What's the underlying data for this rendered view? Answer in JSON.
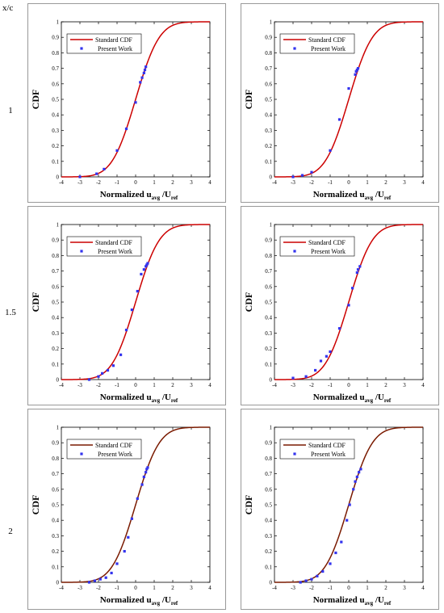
{
  "header_label": "x/c",
  "row_labels": [
    "1",
    "1.5",
    "2"
  ],
  "colors": {
    "cdf_row1_2": "#cc0000",
    "cdf_row3": "#7a1a00",
    "points": "#3333ee"
  },
  "axes": {
    "xlabel_main": "Normalized  u",
    "xlabel_sub1": "avg",
    "xlabel_mid": " /U",
    "xlabel_sub2": "ref",
    "ylabel": "CDF",
    "xlim": [
      -4,
      4
    ],
    "ylim": [
      0,
      1
    ],
    "xticks": [
      "-4",
      "-3",
      "-2",
      "-1",
      "0",
      "1",
      "2",
      "3",
      "4"
    ],
    "yticks": [
      "0",
      "0.1",
      "0.2",
      "0.3",
      "0.4",
      "0.5",
      "0.6",
      "0.7",
      "0.8",
      "0.9",
      "1"
    ]
  },
  "legend": {
    "line": "Standard CDF",
    "points": "Present Work"
  },
  "chart_data": [
    {
      "type": "line",
      "row": "1",
      "xlabel": "Normalized u_avg /U_ref",
      "ylabel": "CDF",
      "xlim": [
        -4,
        4
      ],
      "ylim": [
        0,
        1
      ],
      "line_color": "#cc0000",
      "series": [
        {
          "name": "Standard CDF",
          "kind": "line",
          "function": "normal_cdf"
        },
        {
          "name": "Present Work",
          "kind": "scatter",
          "x": [
            -3.0,
            -2.1,
            -1.7,
            -1.0,
            -0.5,
            0.0,
            0.25,
            0.35,
            0.45,
            0.5,
            0.55
          ],
          "y": [
            0.0,
            0.02,
            0.05,
            0.17,
            0.31,
            0.48,
            0.61,
            0.64,
            0.67,
            0.69,
            0.71
          ]
        }
      ]
    },
    {
      "type": "line",
      "row": "1",
      "xlabel": "Normalized u_avg /U_ref",
      "ylabel": "CDF",
      "xlim": [
        -4,
        4
      ],
      "ylim": [
        0,
        1
      ],
      "line_color": "#cc0000",
      "series": [
        {
          "name": "Standard CDF",
          "kind": "line",
          "function": "normal_cdf"
        },
        {
          "name": "Present Work",
          "kind": "scatter",
          "x": [
            -3.0,
            -2.5,
            -2.0,
            -1.0,
            -0.5,
            0.0,
            0.35,
            0.4,
            0.45,
            0.5
          ],
          "y": [
            0.0,
            0.01,
            0.03,
            0.17,
            0.37,
            0.57,
            0.66,
            0.68,
            0.69,
            0.7
          ]
        }
      ]
    },
    {
      "type": "line",
      "row": "1.5",
      "xlabel": "Normalized u_avg /U_ref",
      "ylabel": "CDF",
      "xlim": [
        -4,
        4
      ],
      "ylim": [
        0,
        1
      ],
      "line_color": "#cc0000",
      "series": [
        {
          "name": "Standard CDF",
          "kind": "line",
          "function": "normal_cdf"
        },
        {
          "name": "Present Work",
          "kind": "scatter",
          "x": [
            -2.5,
            -2.0,
            -1.8,
            -1.5,
            -1.2,
            -0.8,
            -0.5,
            -0.2,
            0.1,
            0.3,
            0.45,
            0.55,
            0.6,
            0.65
          ],
          "y": [
            0.0,
            0.02,
            0.04,
            0.06,
            0.09,
            0.16,
            0.32,
            0.45,
            0.57,
            0.68,
            0.71,
            0.73,
            0.74,
            0.75
          ]
        }
      ]
    },
    {
      "type": "line",
      "row": "1.5",
      "xlabel": "Normalized u_avg /U_ref",
      "ylabel": "CDF",
      "xlim": [
        -4,
        4
      ],
      "ylim": [
        0,
        1
      ],
      "line_color": "#cc0000",
      "series": [
        {
          "name": "Standard CDF",
          "kind": "line",
          "function": "normal_cdf"
        },
        {
          "name": "Present Work",
          "kind": "scatter",
          "x": [
            -3.0,
            -2.3,
            -1.8,
            -1.5,
            -1.2,
            -1.0,
            -0.5,
            0.0,
            0.2,
            0.45,
            0.5,
            0.6
          ],
          "y": [
            0.01,
            0.02,
            0.06,
            0.12,
            0.15,
            0.18,
            0.33,
            0.48,
            0.59,
            0.69,
            0.71,
            0.73
          ]
        }
      ]
    },
    {
      "type": "line",
      "row": "2",
      "xlabel": "Normalized u_avg /U_ref",
      "ylabel": "CDF",
      "xlim": [
        -4,
        4
      ],
      "ylim": [
        0,
        1
      ],
      "line_color": "#7a1a00",
      "series": [
        {
          "name": "Standard CDF",
          "kind": "line",
          "function": "normal_cdf"
        },
        {
          "name": "Present Work",
          "kind": "scatter",
          "x": [
            -2.5,
            -2.2,
            -1.9,
            -1.6,
            -1.3,
            -1.0,
            -0.6,
            -0.4,
            -0.2,
            0.1,
            0.35,
            0.45,
            0.55,
            0.6,
            0.65
          ],
          "y": [
            0.0,
            0.01,
            0.02,
            0.03,
            0.06,
            0.12,
            0.2,
            0.29,
            0.41,
            0.54,
            0.63,
            0.68,
            0.71,
            0.73,
            0.74
          ]
        }
      ]
    },
    {
      "type": "line",
      "row": "2",
      "xlabel": "Normalized u_avg /U_ref",
      "ylabel": "CDF",
      "xlim": [
        -4,
        4
      ],
      "ylim": [
        0,
        1
      ],
      "line_color": "#7a1a00",
      "series": [
        {
          "name": "Standard CDF",
          "kind": "line",
          "function": "normal_cdf"
        },
        {
          "name": "Present Work",
          "kind": "scatter",
          "x": [
            -2.6,
            -2.3,
            -2.0,
            -1.7,
            -1.4,
            -1.0,
            -0.7,
            -0.4,
            -0.1,
            0.05,
            0.25,
            0.35,
            0.45,
            0.55,
            0.65
          ],
          "y": [
            0.0,
            0.01,
            0.02,
            0.04,
            0.07,
            0.12,
            0.19,
            0.26,
            0.4,
            0.5,
            0.6,
            0.65,
            0.68,
            0.71,
            0.73
          ]
        }
      ]
    }
  ]
}
